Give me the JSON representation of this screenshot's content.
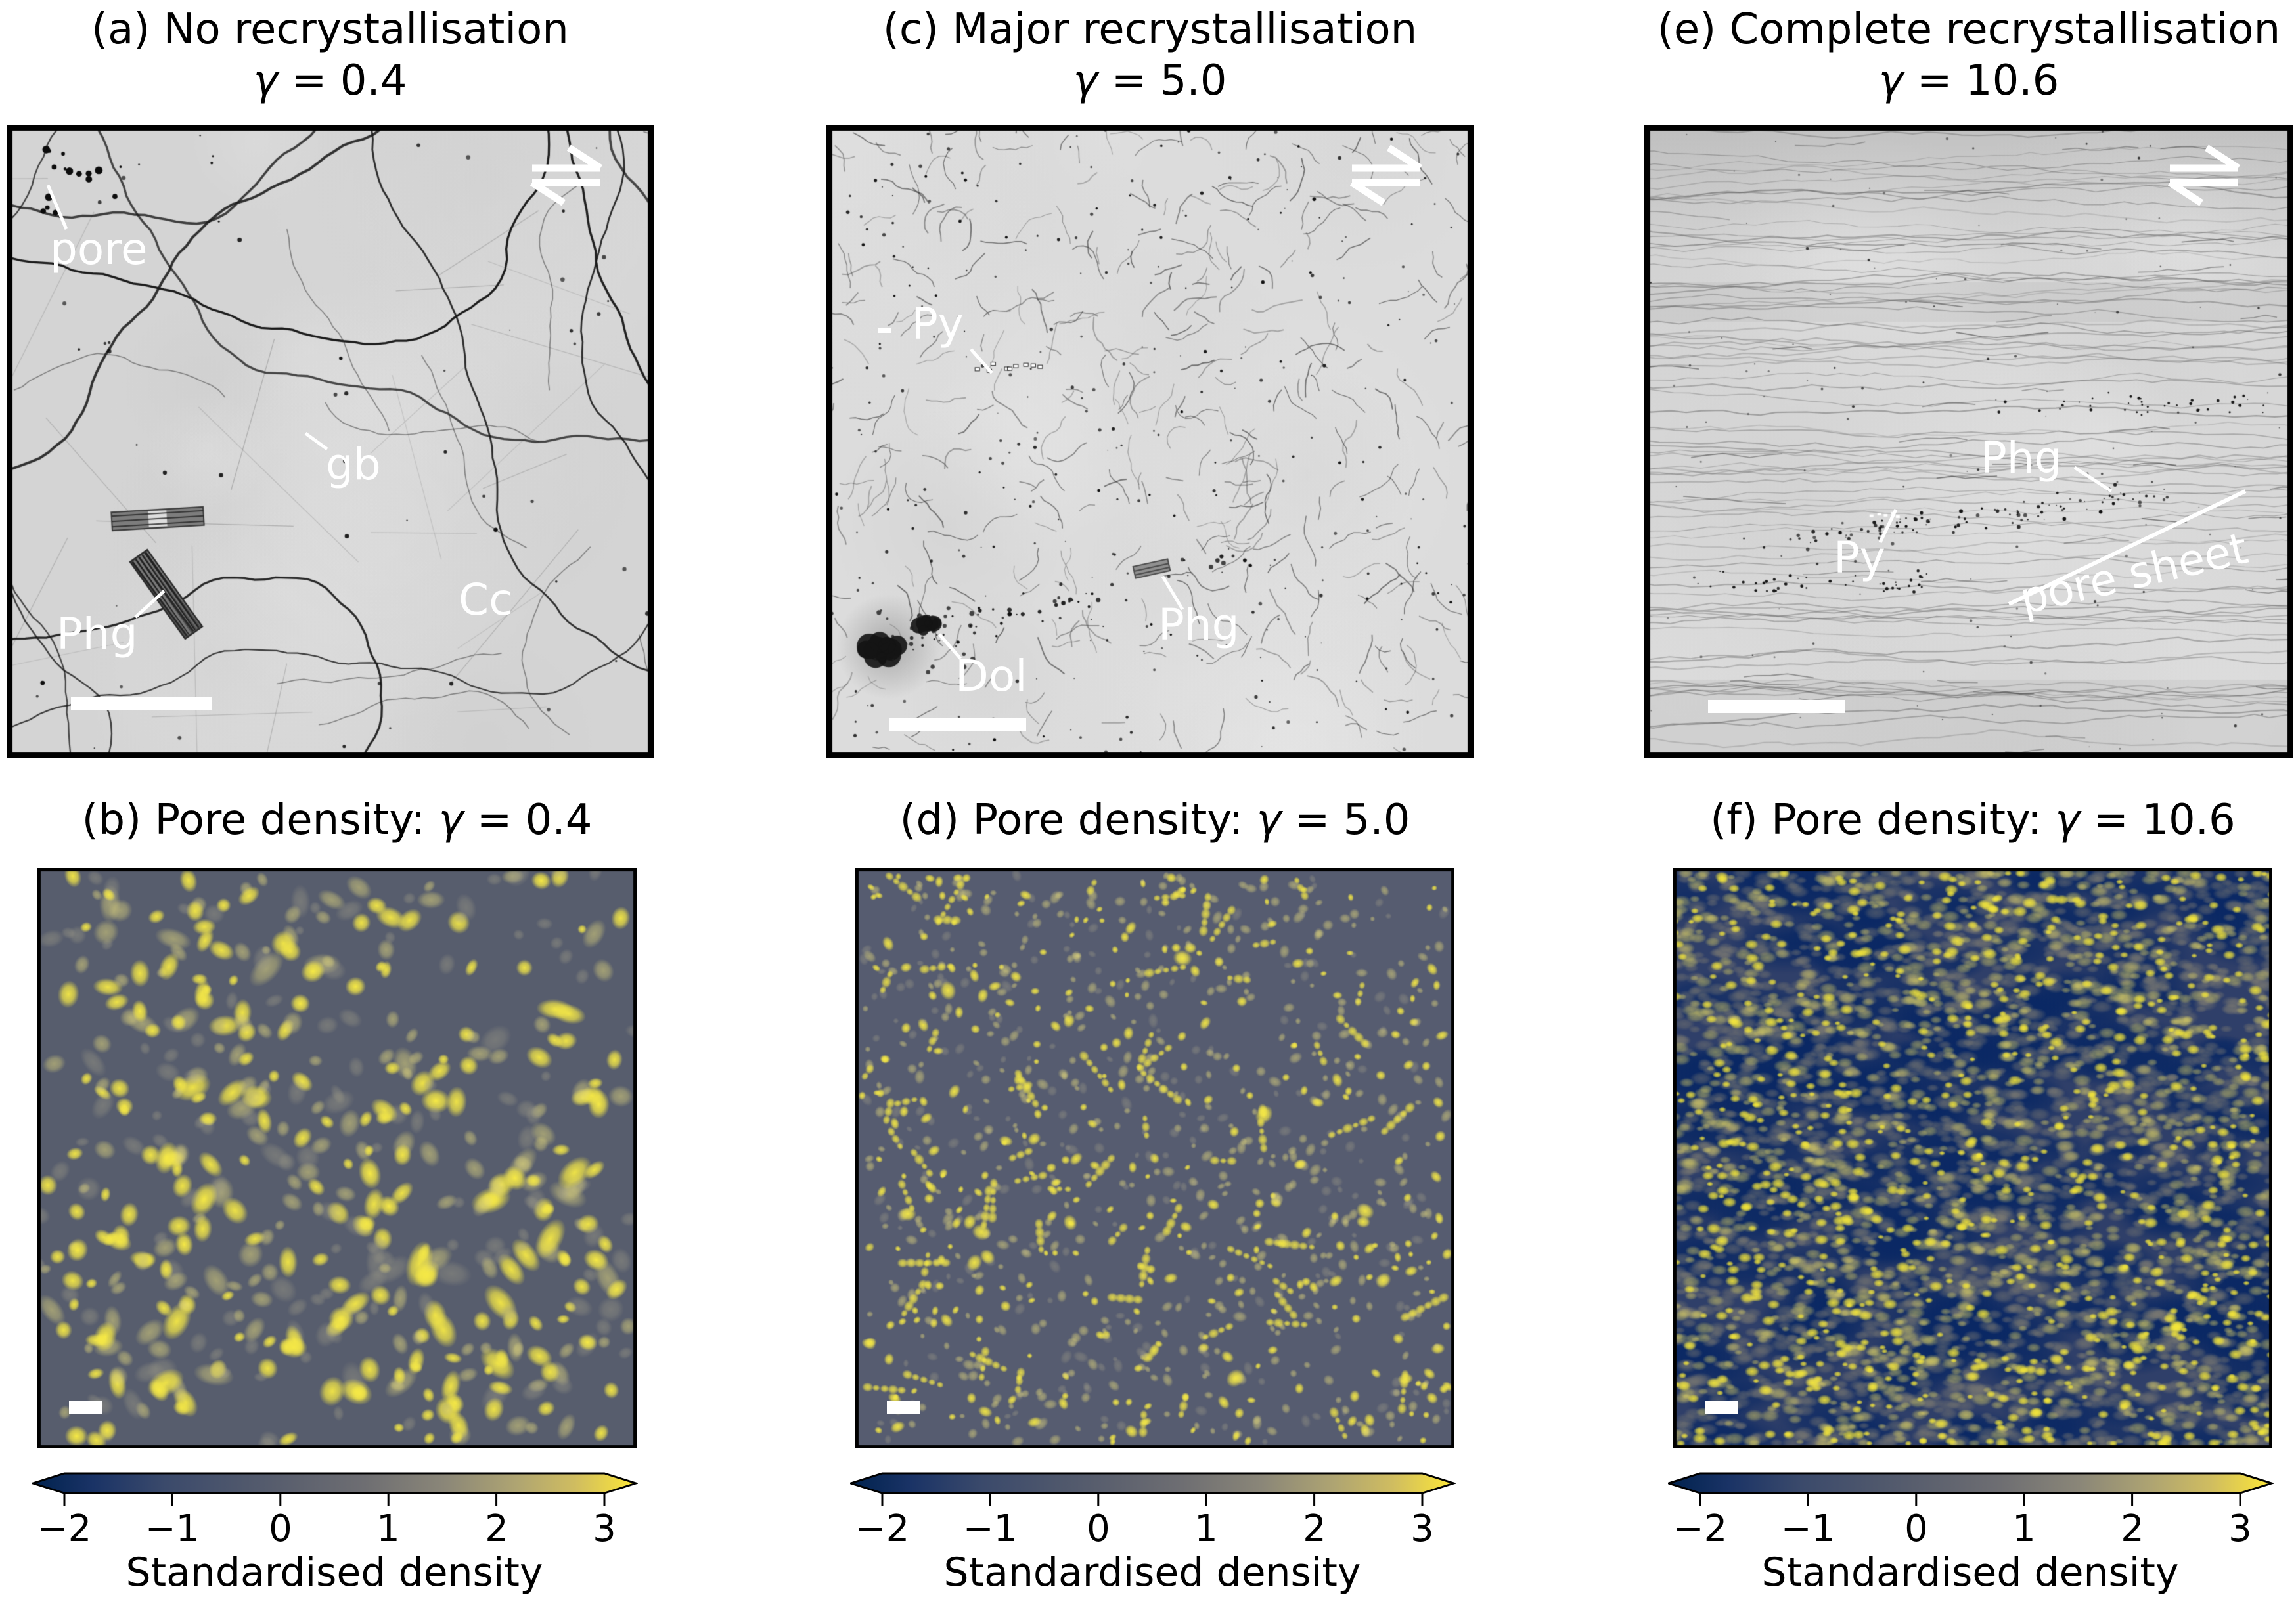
{
  "panels": {
    "a": {
      "caption": "(a) No recrystallisation",
      "gamma_symbol": "γ",
      "gamma_eq": " = 0.4",
      "annotations": {
        "pore": "pore",
        "gb": "gb",
        "phg": "Phg",
        "cc": "Cc"
      }
    },
    "c": {
      "caption": "(c) Major recrystallisation",
      "gamma_symbol": "γ",
      "gamma_eq": " = 5.0",
      "annotations": {
        "py": "Py",
        "phg": "Phg",
        "dol": "Dol"
      }
    },
    "e": {
      "caption": "(e) Complete recrystallisation",
      "gamma_symbol": "γ",
      "gamma_eq": " = 10.6",
      "annotations": {
        "phg": "Phg",
        "py": "Py",
        "pore_sheet": "pore sheet"
      }
    },
    "b": {
      "caption_prefix": "(b) Pore density: ",
      "gamma_symbol": "γ",
      "gamma_eq": " = 0.4"
    },
    "d": {
      "caption_prefix": "(d) Pore density: ",
      "gamma_symbol": "γ",
      "gamma_eq": " = 5.0"
    },
    "f": {
      "caption_prefix": "(f) Pore density: ",
      "gamma_symbol": "γ",
      "gamma_eq": " = 10.6"
    }
  },
  "colorbar": {
    "label": "Standardised density",
    "ticks": [
      "−2",
      "−1",
      "0",
      "1",
      "2",
      "3"
    ],
    "range": [
      -2,
      3
    ],
    "colormap_name": "cividis",
    "color_min": "#00224e",
    "color_mid": "#7b7a76",
    "color_max": "#fee838"
  },
  "render": {
    "sem": {
      "a": {
        "seed": 11,
        "bg": "#d4d4d4",
        "style": "grains"
      },
      "c": {
        "seed": 7,
        "bg": "#dcdcdc",
        "style": "fine"
      },
      "e": {
        "seed": 23,
        "bg": "#d8d8d8",
        "style": "foliated"
      }
    },
    "maps": {
      "b": {
        "seed": 31,
        "bg": "#575d6d",
        "style": "network"
      },
      "d": {
        "seed": 47,
        "bg": "#565c70",
        "style": "scatter"
      },
      "f": {
        "seed": 83,
        "bg": "#2f3f69",
        "style": "dense"
      }
    }
  }
}
